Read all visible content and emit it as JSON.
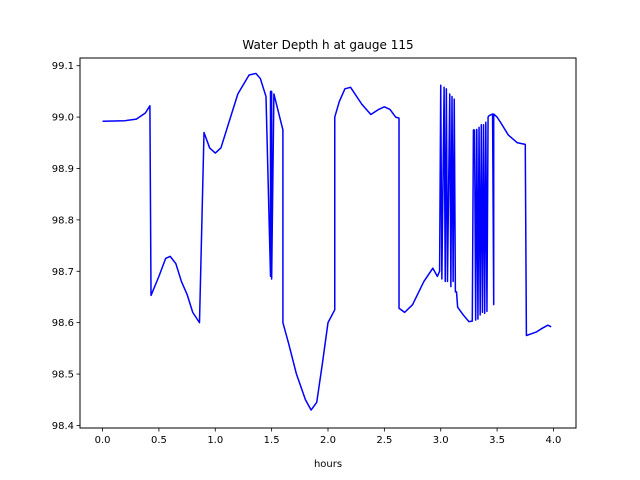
{
  "chart_data": {
    "type": "line",
    "title": "Water Depth h at gauge 115",
    "xlabel": "hours",
    "ylabel": "",
    "xlim": [
      -0.2,
      4.2
    ],
    "ylim": [
      98.395,
      99.115
    ],
    "xticks": [
      0.0,
      0.5,
      1.0,
      1.5,
      2.0,
      2.5,
      3.0,
      3.5,
      4.0
    ],
    "xtick_labels": [
      "0.0",
      "0.5",
      "1.0",
      "1.5",
      "2.0",
      "2.5",
      "3.0",
      "3.5",
      "4.0"
    ],
    "yticks": [
      98.4,
      98.5,
      98.6,
      98.7,
      98.8,
      98.9,
      99.0,
      99.1
    ],
    "ytick_labels": [
      "98.4",
      "98.5",
      "98.6",
      "98.7",
      "98.8",
      "98.9",
      "99.0",
      "99.1"
    ],
    "grid": false,
    "legend": "none",
    "series": [
      {
        "color": "#0000ff",
        "x": [
          0.0,
          0.2,
          0.3,
          0.38,
          0.42,
          0.43,
          0.43,
          0.5,
          0.56,
          0.6,
          0.65,
          0.7,
          0.75,
          0.8,
          0.86,
          0.9,
          0.9,
          0.95,
          1.0,
          1.05,
          1.1,
          1.2,
          1.3,
          1.36,
          1.4,
          1.45,
          1.49,
          1.49,
          1.5,
          1.5,
          1.52,
          1.6,
          1.6,
          1.65,
          1.72,
          1.8,
          1.85,
          1.9,
          1.95,
          2.0,
          2.06,
          2.06,
          2.1,
          2.15,
          2.2,
          2.3,
          2.38,
          2.45,
          2.5,
          2.55,
          2.6,
          2.63,
          2.63,
          2.68,
          2.75,
          2.85,
          2.93,
          2.97,
          2.99,
          3.0,
          3.01,
          3.03,
          3.04,
          3.05,
          3.06,
          3.08,
          3.09,
          3.1,
          3.11,
          3.12,
          3.13,
          3.14,
          3.15,
          3.2,
          3.25,
          3.28,
          3.29,
          3.3,
          3.31,
          3.32,
          3.33,
          3.34,
          3.35,
          3.36,
          3.37,
          3.38,
          3.39,
          3.4,
          3.41,
          3.42,
          3.43,
          3.46,
          3.47,
          3.47,
          3.5,
          3.53,
          3.6,
          3.68,
          3.75,
          3.76,
          3.76,
          3.8,
          3.85,
          3.9,
          3.95,
          3.98
        ],
        "y": [
          98.992,
          98.993,
          98.996,
          99.008,
          99.022,
          98.653,
          98.653,
          98.69,
          98.725,
          98.729,
          98.715,
          98.68,
          98.655,
          98.62,
          98.6,
          98.97,
          98.97,
          98.94,
          98.93,
          98.94,
          98.975,
          99.045,
          99.082,
          99.085,
          99.075,
          99.04,
          98.69,
          99.05,
          99.05,
          98.685,
          99.045,
          98.975,
          98.6,
          98.56,
          98.5,
          98.45,
          98.43,
          98.445,
          98.52,
          98.6,
          98.625,
          99.0,
          99.03,
          99.055,
          99.058,
          99.025,
          99.005,
          99.015,
          99.02,
          99.015,
          99.0,
          98.998,
          98.628,
          98.62,
          98.635,
          98.68,
          98.706,
          98.69,
          98.7,
          99.062,
          98.685,
          99.058,
          98.68,
          99.055,
          98.68,
          99.045,
          98.67,
          99.04,
          98.68,
          99.035,
          98.66,
          98.66,
          98.63,
          98.615,
          98.602,
          98.603,
          98.975,
          98.975,
          98.605,
          98.976,
          98.607,
          98.98,
          98.615,
          98.985,
          98.62,
          98.985,
          98.618,
          98.99,
          98.622,
          99.0,
          99.003,
          99.006,
          98.635,
          99.006,
          99.0,
          98.99,
          98.965,
          98.95,
          98.947,
          98.575,
          98.575,
          98.578,
          98.582,
          98.589,
          98.595,
          98.592
        ]
      }
    ]
  }
}
